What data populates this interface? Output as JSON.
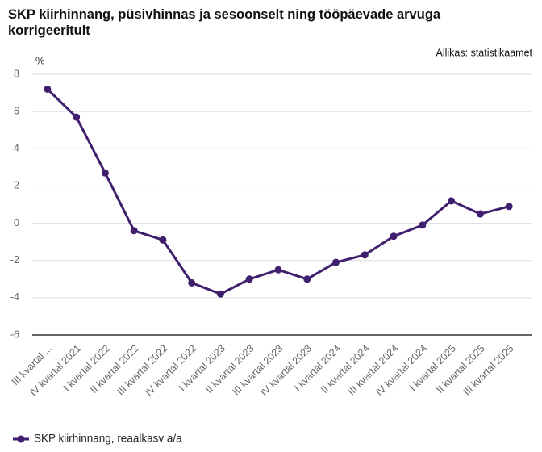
{
  "chart_data": {
    "type": "line",
    "title": "SKP kiirhinnang, püsivhinnas ja sesoonselt ning tööpäevade arvuga korrigeeritult",
    "source": "Allikas: statistikaamet",
    "y_label": "%",
    "categories": [
      "III kvartal ...",
      "IV kvartal 2021",
      "I kvartal 2022",
      "II kvartal 2022",
      "III kvartal 2022",
      "IV kvartal 2022",
      "I kvartal 2023",
      "II kvartal 2023",
      "III kvartal 2023",
      "IV kvartal 2023",
      "I kvartal 2024",
      "II kvartal 2024",
      "III kvartal 2024",
      "IV kvartal 2024",
      "I kvartal 2025",
      "II kvartal 2025",
      "III kvartal 2025"
    ],
    "series": [
      {
        "name": "SKP kiirhinnang, reaalkasv a/a",
        "color": "#3f1f6e",
        "values": [
          7.2,
          5.7,
          2.7,
          -0.4,
          -0.9,
          -3.2,
          -3.8,
          -3.0,
          -2.5,
          -3.0,
          -2.1,
          -1.7,
          -0.7,
          -0.1,
          1.2,
          0.5,
          0.9
        ]
      }
    ],
    "ylim": [
      -6,
      8
    ],
    "yticks": [
      -6,
      -4,
      -2,
      0,
      2,
      4,
      6,
      8
    ],
    "grid": true,
    "legend": "bottom-left"
  }
}
